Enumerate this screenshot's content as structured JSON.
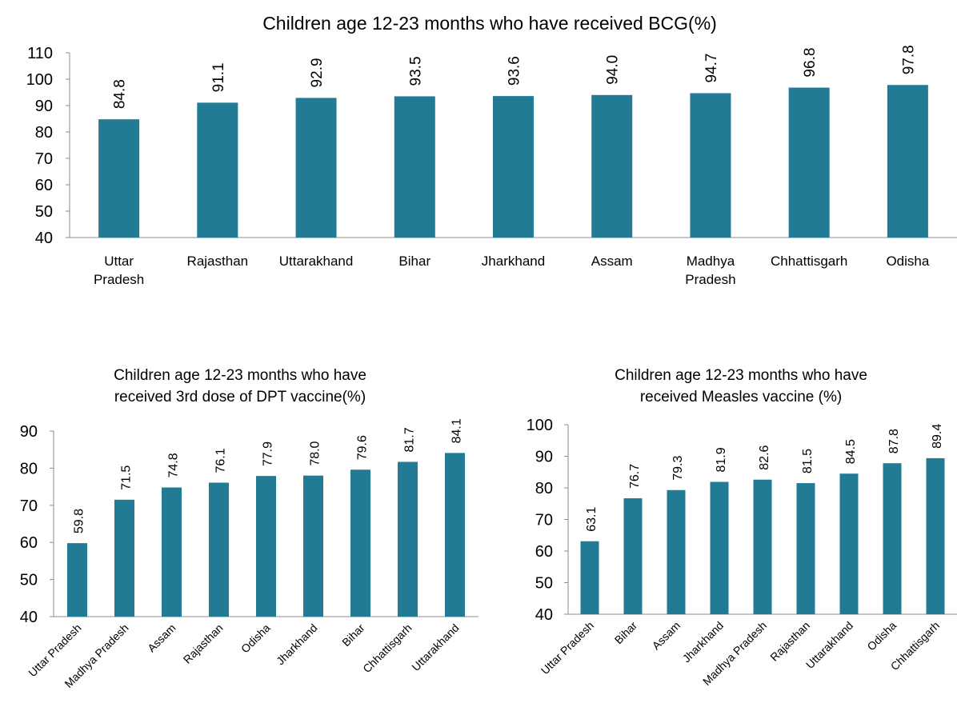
{
  "chart_data": [
    {
      "type": "bar",
      "title": "Children age 12-23 months who have received BCG(%)",
      "categories": [
        "Uttar Pradesh",
        "Rajasthan",
        "Uttarakhand",
        "Bihar",
        "Jharkhand",
        "Assam",
        "Madhya Pradesh",
        "Chhattisgarh",
        "Odisha"
      ],
      "category_lines": [
        [
          "Uttar",
          "Pradesh"
        ],
        [
          "Rajasthan"
        ],
        [
          "Uttarakhand"
        ],
        [
          "Bihar"
        ],
        [
          "Jharkhand"
        ],
        [
          "Assam"
        ],
        [
          "Madhya",
          "Pradesh"
        ],
        [
          "Chhattisgarh"
        ],
        [
          "Odisha"
        ]
      ],
      "values": [
        84.8,
        91.1,
        92.9,
        93.5,
        93.6,
        94.0,
        94.7,
        96.8,
        97.8
      ],
      "data_labels": [
        "84.8",
        "91.1",
        "92.9",
        "93.5",
        "93.6",
        "94.0",
        "94.7",
        "96.8",
        "97.8"
      ],
      "ylim": [
        40,
        110
      ],
      "yticks": [
        40,
        50,
        60,
        70,
        80,
        90,
        100,
        110
      ],
      "xlabel": "",
      "ylabel": "",
      "grid": false,
      "legend": "none",
      "bar_color": "#217B95"
    },
    {
      "type": "bar",
      "title": "Children age 12-23 months who have received 3rd dose of DPT vaccine(%)",
      "title_lines": [
        "Children age 12-23 months who have",
        "received 3rd dose of DPT vaccine(%)"
      ],
      "categories": [
        "Uttar Pradesh",
        "Madhya Pradesh",
        "Assam",
        "Rajasthan",
        "Odisha",
        "Jharkhand",
        "Bihar",
        "Chhattisgarh",
        "Uttarakhand"
      ],
      "values": [
        59.8,
        71.5,
        74.8,
        76.1,
        77.9,
        78.0,
        79.6,
        81.7,
        84.1
      ],
      "data_labels": [
        "59.8",
        "71.5",
        "74.8",
        "76.1",
        "77.9",
        "78.0",
        "79.6",
        "81.7",
        "84.1"
      ],
      "ylim": [
        40,
        90
      ],
      "yticks": [
        40,
        50,
        60,
        70,
        80,
        90
      ],
      "xlabel": "",
      "ylabel": "",
      "grid": false,
      "legend": "none",
      "bar_color": "#217B95"
    },
    {
      "type": "bar",
      "title": "Children age 12-23 months who have received Measles vaccine (%)",
      "title_lines": [
        "Children age 12-23 months who have",
        "received Measles vaccine (%)"
      ],
      "categories": [
        "Uttar Pradesh",
        "Bihar",
        "Assam",
        "Jharkhand",
        "Madhya Pradesh",
        "Rajasthan",
        "Uttarakhand",
        "Odisha",
        "Chhattisgarh"
      ],
      "values": [
        63.1,
        76.7,
        79.3,
        81.9,
        82.6,
        81.5,
        84.5,
        87.8,
        89.4
      ],
      "data_labels": [
        "63.1",
        "76.7",
        "79.3",
        "81.9",
        "82.6",
        "81.5",
        "84.5",
        "87.8",
        "89.4"
      ],
      "ylim": [
        40,
        100
      ],
      "yticks": [
        40,
        50,
        60,
        70,
        80,
        90,
        100
      ],
      "xlabel": "",
      "ylabel": "",
      "grid": false,
      "legend": "none",
      "bar_color": "#217B95"
    }
  ]
}
